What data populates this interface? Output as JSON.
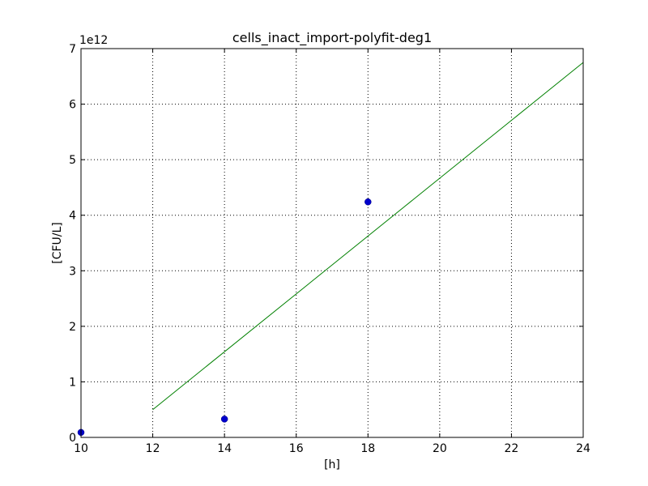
{
  "chart_data": {
    "type": "scatter",
    "title": "cells_inact_import-polyfit-deg1",
    "xlabel": "[h]",
    "ylabel": "[CFU/L]",
    "y_offset_label": "1e12",
    "xlim": [
      10,
      24
    ],
    "ylim": [
      0,
      7
    ],
    "x_ticks": [
      10,
      12,
      14,
      16,
      18,
      20,
      22,
      24
    ],
    "y_ticks": [
      0,
      1,
      2,
      3,
      4,
      5,
      6,
      7
    ],
    "x_tick_labels": [
      "10",
      "12",
      "14",
      "16",
      "18",
      "20",
      "22",
      "24"
    ],
    "y_tick_labels": [
      "0",
      "1",
      "2",
      "3",
      "4",
      "5",
      "6",
      "7"
    ],
    "grid": true,
    "series": [
      {
        "kind": "points",
        "color": "#0000cc",
        "x": [
          10,
          14,
          18
        ],
        "y": [
          0.09,
          0.33,
          4.24
        ]
      },
      {
        "kind": "line",
        "color": "#008000",
        "x": [
          12,
          24
        ],
        "y": [
          0.5,
          6.75
        ]
      }
    ]
  }
}
